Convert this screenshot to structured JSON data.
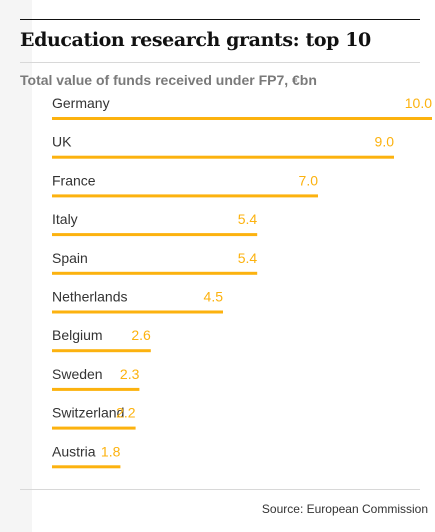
{
  "title": "Education research grants: top 10",
  "subtitle": "Total value of funds received under FP7, €bn",
  "source": "Source: European Commission",
  "colors": {
    "bar": "#fcb20f",
    "label": "#333333",
    "subtitle": "#7a7a7a"
  },
  "chart_data": {
    "type": "bar",
    "orientation": "horizontal",
    "title": "Education research grants: top 10",
    "subtitle": "Total value of funds received under FP7, €bn",
    "categories": [
      "Germany",
      "UK",
      "France",
      "Italy",
      "Spain",
      "Netherlands",
      "Belgium",
      "Sweden",
      "Switzerland",
      "Austria"
    ],
    "values": [
      10.0,
      9.0,
      7.0,
      5.4,
      5.4,
      4.5,
      2.6,
      2.3,
      2.2,
      1.8
    ],
    "value_labels": [
      "10.0",
      "9.0",
      "7.0",
      "5.4",
      "5.4",
      "4.5",
      "2.6",
      "2.3",
      "2.2",
      "1.8"
    ],
    "xlim": [
      0,
      10
    ],
    "grid": false,
    "legend": "none"
  }
}
